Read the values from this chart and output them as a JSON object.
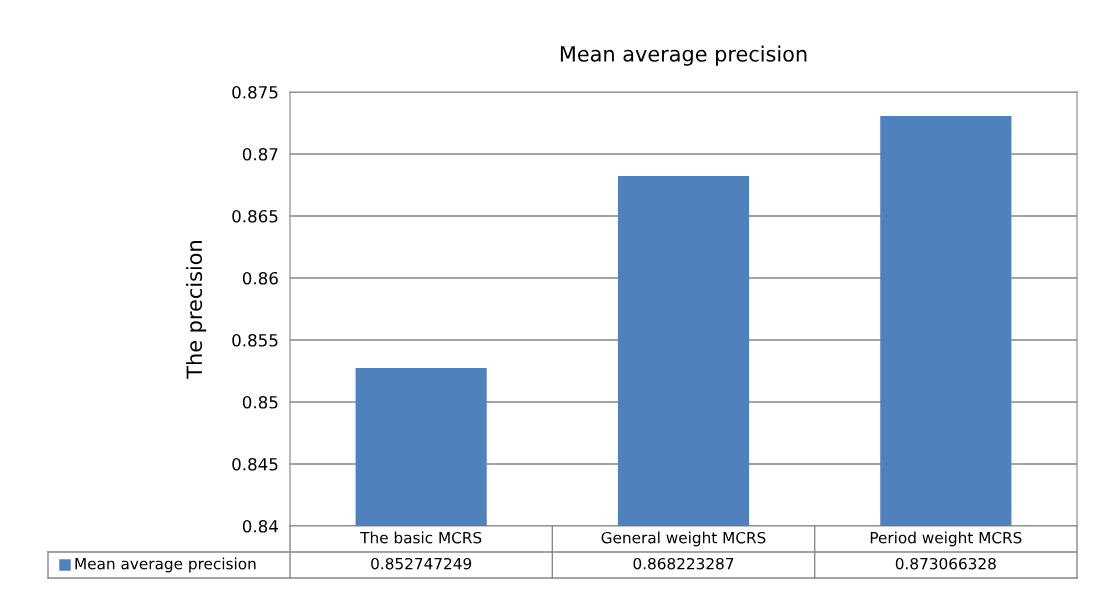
{
  "chart_data": {
    "type": "bar",
    "title": "Mean average precision",
    "ylabel": "The precision",
    "categories": [
      "The basic MCRS",
      "General weight MCRS",
      "Period weight MCRS"
    ],
    "series": [
      {
        "name": "Mean average precision",
        "color": "#4f81bd",
        "values": [
          0.852747249,
          0.868223287,
          0.873066328
        ]
      }
    ],
    "ylim": [
      0.84,
      0.875
    ],
    "yticks": [
      0.84,
      0.845,
      0.85,
      0.855,
      0.86,
      0.865,
      0.87,
      0.875
    ],
    "grid": "y",
    "legend": "bottom",
    "data_labels": true
  }
}
